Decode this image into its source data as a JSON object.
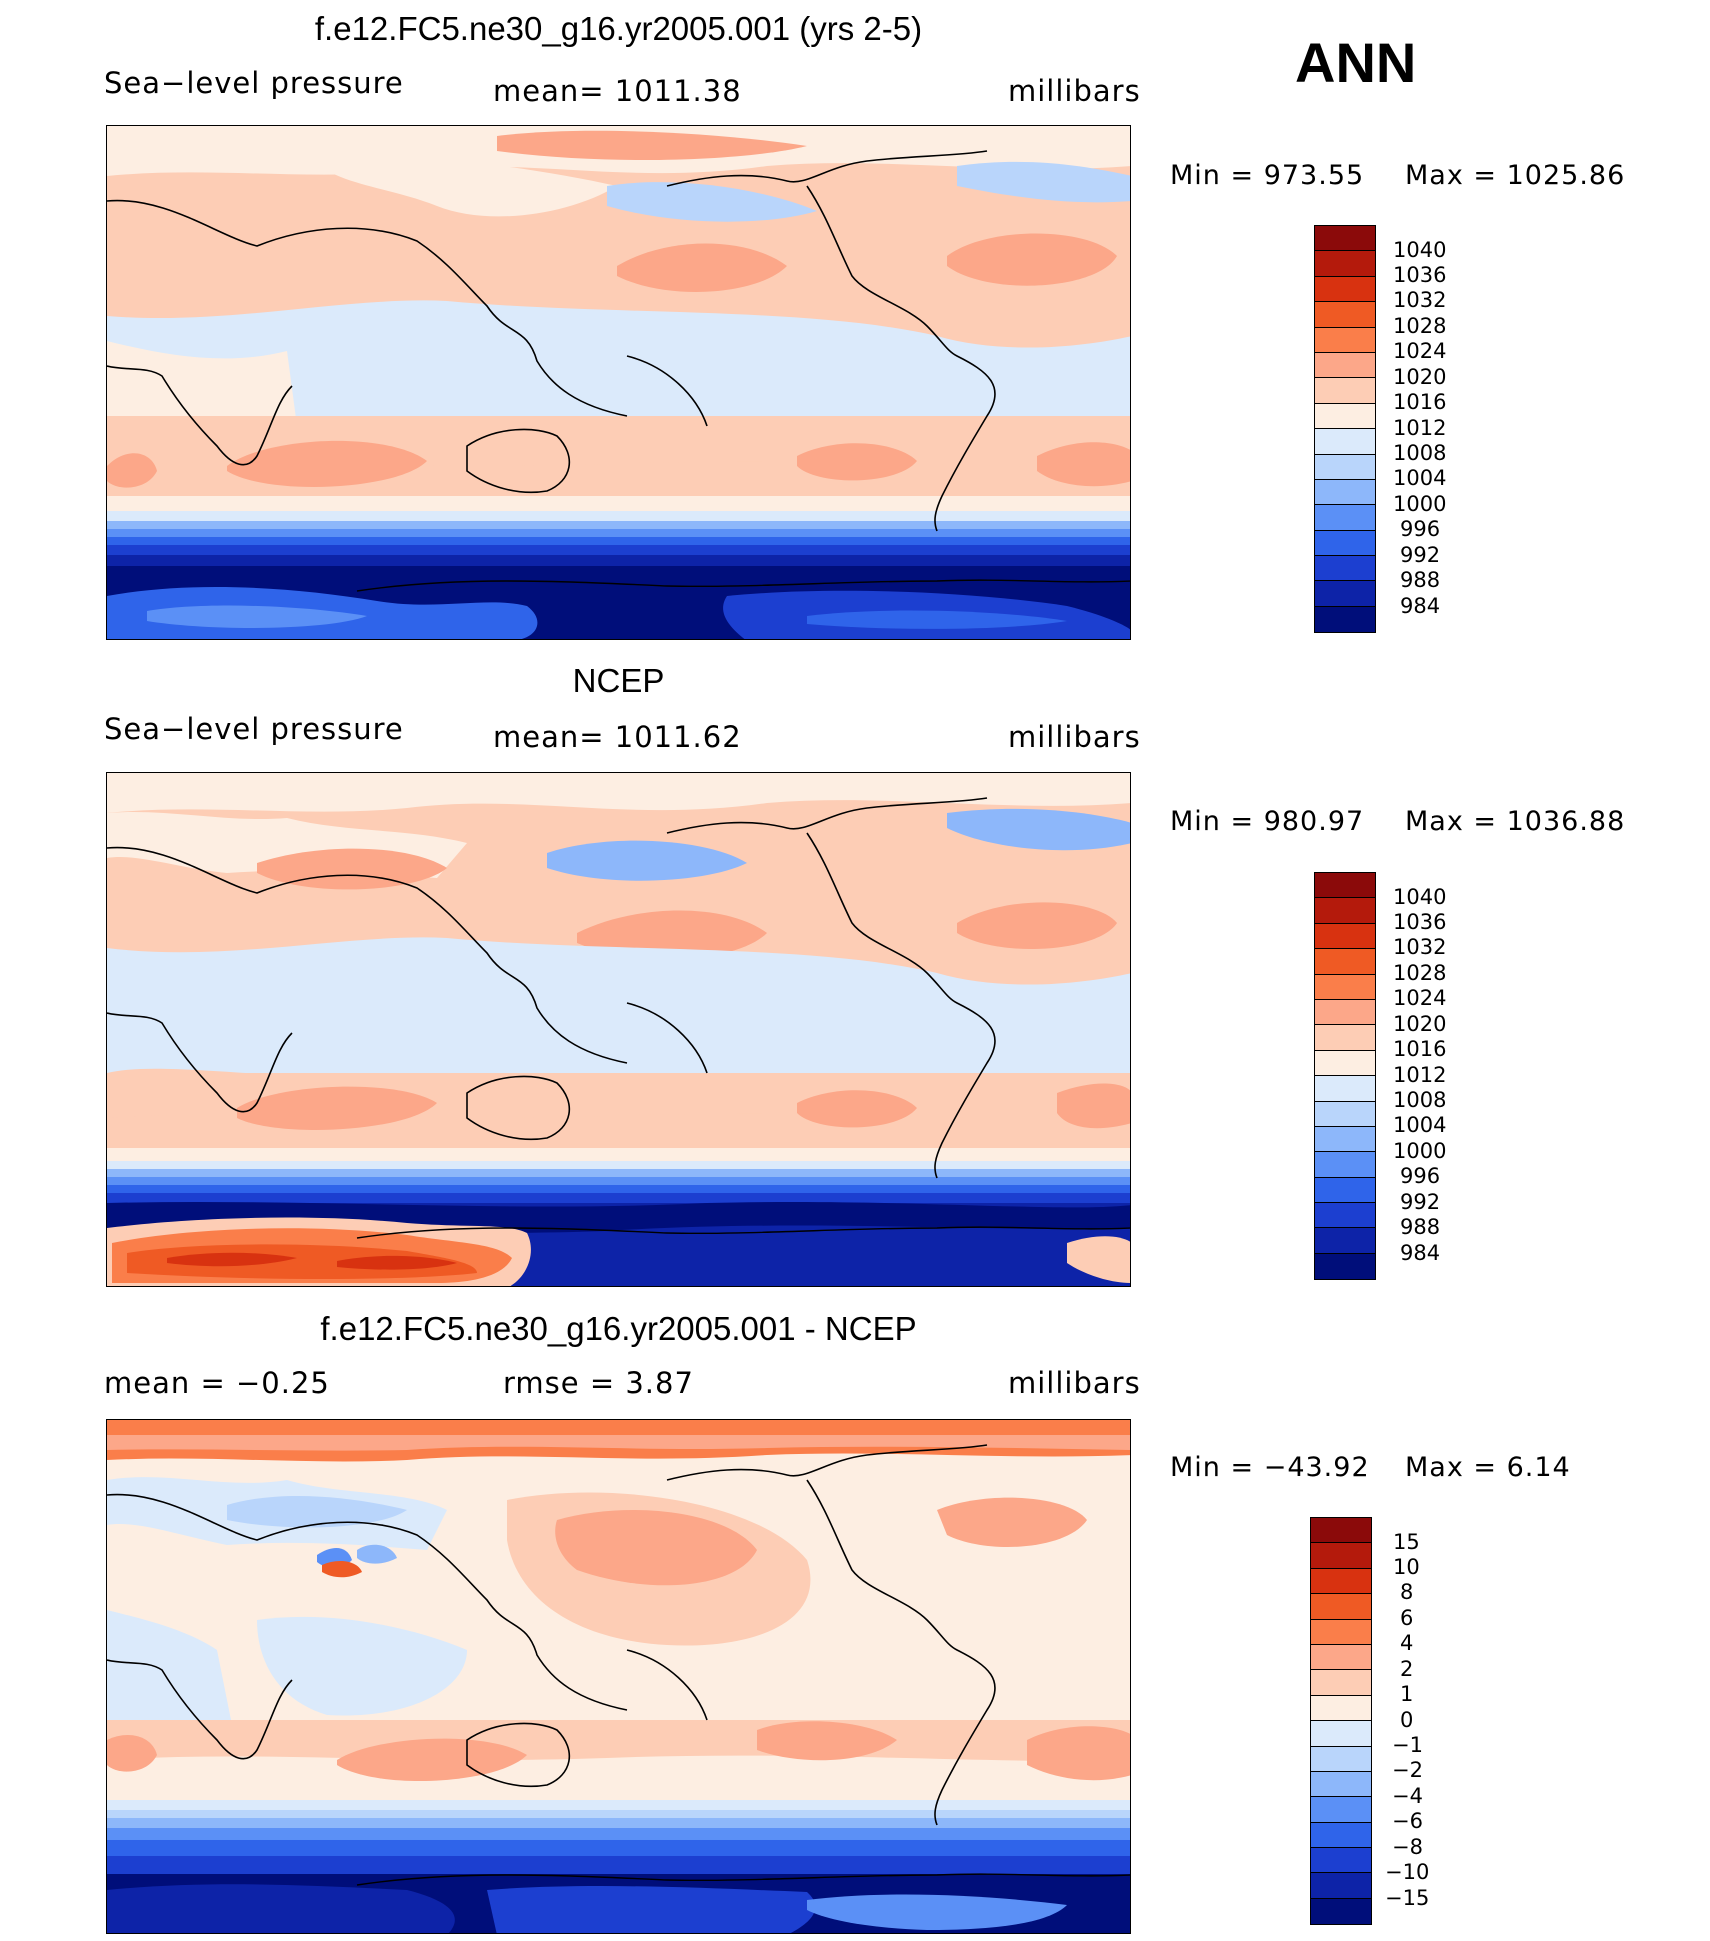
{
  "season": "ANN",
  "panels": [
    {
      "title": "f.e12.FC5.ne30_g16.yr2005.001 (yrs 2-5)",
      "left_label": "Sea−level pressure",
      "center_label": "mean=  1011.38",
      "units": "millibars",
      "min_text": "Min  =  973.55",
      "max_text": "Max  =  1025.86",
      "colorbar_labels": [
        "1040",
        "1036",
        "1032",
        "1028",
        "1024",
        "1020",
        "1016",
        "1012",
        "1008",
        "1004",
        "1000",
        "996",
        "992",
        "988",
        "984"
      ]
    },
    {
      "title": "NCEP",
      "left_label": "Sea−level pressure",
      "center_label": "mean=  1011.62",
      "units": "millibars",
      "min_text": "Min  =  980.97",
      "max_text": "Max  =  1036.88",
      "colorbar_labels": [
        "1040",
        "1036",
        "1032",
        "1028",
        "1024",
        "1020",
        "1016",
        "1012",
        "1008",
        "1004",
        "1000",
        "996",
        "992",
        "988",
        "984"
      ]
    },
    {
      "title": "f.e12.FC5.ne30_g16.yr2005.001 - NCEP",
      "left_label": "mean  =    −0.25",
      "center_label": "rmse  =     3.87",
      "units": "millibars",
      "min_text": "Min  =  −43.92",
      "max_text": "Max  =      6.14",
      "colorbar_labels": [
        "15",
        "10",
        "8",
        "6",
        "4",
        "2",
        "1",
        "0",
        "−1",
        "−2",
        "−4",
        "−6",
        "−8",
        "−10",
        "−15"
      ]
    }
  ],
  "colors": {
    "abs_scale": [
      "#8b0a0a",
      "#b41a0c",
      "#d83210",
      "#ef5a24",
      "#fa7e4a",
      "#fca789",
      "#fdcdb5",
      "#fdeee2",
      "#dbeafb",
      "#b9d5fb",
      "#8db7fa",
      "#5b90f6",
      "#2f64ea",
      "#1c3fd0",
      "#0d23a8",
      "#000e7a"
    ],
    "diff_scale": [
      "#8b0a0a",
      "#b41a0c",
      "#d83210",
      "#ef5a24",
      "#fa7e4a",
      "#fca789",
      "#fdcdb5",
      "#fdeee2",
      "#dbeafb",
      "#b9d5fb",
      "#8db7fa",
      "#5b90f6",
      "#2f64ea",
      "#1c3fd0",
      "#0d23a8",
      "#000e7a"
    ]
  }
}
